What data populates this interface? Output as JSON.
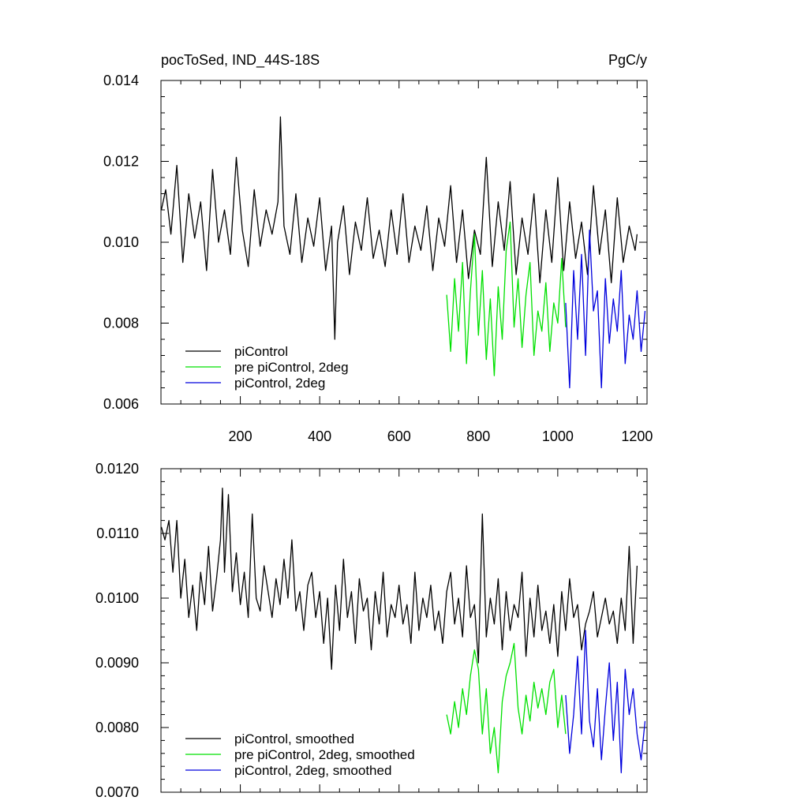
{
  "chart_data": [
    {
      "type": "line",
      "title_left": "pocToSed, IND_44S-18S",
      "title_right": "PgC/y",
      "xlim": [
        0,
        1225
      ],
      "ylim": [
        0.006,
        0.014
      ],
      "xticks": [
        {
          "value": 200,
          "label": "200"
        },
        {
          "value": 400,
          "label": "400"
        },
        {
          "value": 600,
          "label": "600"
        },
        {
          "value": 800,
          "label": "800"
        },
        {
          "value": 1000,
          "label": "1000"
        },
        {
          "value": 1200,
          "label": "1200"
        }
      ],
      "yticks": [
        {
          "value": 0.006,
          "label": "0.006"
        },
        {
          "value": 0.008,
          "label": "0.008"
        },
        {
          "value": 0.01,
          "label": "0.010"
        },
        {
          "value": 0.012,
          "label": "0.012"
        },
        {
          "value": 0.014,
          "label": "0.014"
        }
      ],
      "legend_position": "bottom-left",
      "series": [
        {
          "name": "piControl",
          "color": "#000000",
          "x": [
            1,
            12,
            25,
            40,
            55,
            70,
            85,
            100,
            115,
            130,
            145,
            160,
            175,
            190,
            205,
            220,
            235,
            250,
            265,
            280,
            295,
            301,
            310,
            325,
            340,
            355,
            370,
            385,
            400,
            415,
            430,
            438,
            445,
            460,
            475,
            490,
            505,
            520,
            535,
            550,
            565,
            580,
            595,
            610,
            625,
            640,
            655,
            670,
            685,
            700,
            715,
            730,
            745,
            760,
            775,
            790,
            805,
            820,
            835,
            850,
            865,
            880,
            895,
            910,
            925,
            940,
            955,
            970,
            985,
            1000,
            1015,
            1030,
            1045,
            1060,
            1075,
            1090,
            1105,
            1120,
            1135,
            1150,
            1165,
            1180,
            1195,
            1200
          ],
          "y": [
            0.0108,
            0.0113,
            0.0102,
            0.0119,
            0.0095,
            0.0112,
            0.0101,
            0.011,
            0.0093,
            0.0118,
            0.01,
            0.0108,
            0.0097,
            0.0121,
            0.0103,
            0.0094,
            0.0113,
            0.0099,
            0.0108,
            0.0102,
            0.011,
            0.0131,
            0.0104,
            0.0097,
            0.0112,
            0.0095,
            0.0106,
            0.0099,
            0.0111,
            0.0093,
            0.0104,
            0.0076,
            0.01,
            0.0109,
            0.0092,
            0.0105,
            0.0098,
            0.0111,
            0.0096,
            0.0103,
            0.0094,
            0.0108,
            0.0097,
            0.0112,
            0.0095,
            0.0104,
            0.0098,
            0.0109,
            0.0093,
            0.0106,
            0.0099,
            0.0114,
            0.0095,
            0.0108,
            0.0091,
            0.0103,
            0.0097,
            0.0121,
            0.0094,
            0.011,
            0.0098,
            0.0115,
            0.0092,
            0.0106,
            0.0097,
            0.0112,
            0.009,
            0.0108,
            0.0095,
            0.0116,
            0.0093,
            0.011,
            0.0096,
            0.0105,
            0.0092,
            0.0114,
            0.0097,
            0.0108,
            0.009,
            0.0111,
            0.0095,
            0.0104,
            0.0098,
            0.0102
          ]
        },
        {
          "name": "pre piControl, 2deg",
          "color": "#00e000",
          "x": [
            720,
            730,
            740,
            750,
            760,
            770,
            780,
            790,
            800,
            810,
            820,
            830,
            840,
            850,
            860,
            870,
            880,
            890,
            900,
            910,
            920,
            930,
            940,
            950,
            960,
            970,
            980,
            990,
            1000,
            1010,
            1020
          ],
          "y": [
            0.0087,
            0.0073,
            0.0091,
            0.0078,
            0.0095,
            0.007,
            0.0088,
            0.0102,
            0.0077,
            0.0093,
            0.0071,
            0.0086,
            0.0067,
            0.0089,
            0.0076,
            0.0098,
            0.0105,
            0.0079,
            0.0091,
            0.0074,
            0.0087,
            0.0095,
            0.0072,
            0.0083,
            0.0078,
            0.009,
            0.0073,
            0.0085,
            0.008,
            0.0096,
            0.0079
          ]
        },
        {
          "name": "piControl, 2deg",
          "color": "#0000dd",
          "x": [
            1020,
            1030,
            1040,
            1050,
            1060,
            1070,
            1080,
            1090,
            1100,
            1110,
            1120,
            1130,
            1140,
            1150,
            1160,
            1170,
            1180,
            1190,
            1200,
            1210,
            1220
          ],
          "y": [
            0.0085,
            0.0064,
            0.0093,
            0.0076,
            0.0097,
            0.0072,
            0.0103,
            0.0083,
            0.0088,
            0.0064,
            0.0091,
            0.0075,
            0.0086,
            0.0078,
            0.0093,
            0.007,
            0.0082,
            0.0076,
            0.0088,
            0.0073,
            0.0083
          ]
        }
      ]
    },
    {
      "type": "line",
      "xlim": [
        0,
        1225
      ],
      "ylim": [
        0.007,
        0.012
      ],
      "xticks": [
        {
          "value": 200,
          "label": ""
        },
        {
          "value": 400,
          "label": ""
        },
        {
          "value": 600,
          "label": ""
        },
        {
          "value": 800,
          "label": ""
        },
        {
          "value": 1000,
          "label": ""
        },
        {
          "value": 1200,
          "label": ""
        }
      ],
      "yticks": [
        {
          "value": 0.007,
          "label": "0.0070"
        },
        {
          "value": 0.008,
          "label": "0.0080"
        },
        {
          "value": 0.009,
          "label": "0.0090"
        },
        {
          "value": 0.01,
          "label": "0.0100"
        },
        {
          "value": 0.011,
          "label": "0.0110"
        },
        {
          "value": 0.012,
          "label": "0.0120"
        }
      ],
      "legend_position": "bottom-left",
      "series": [
        {
          "name": "piControl, smoothed",
          "color": "#000000",
          "x": [
            1,
            10,
            20,
            30,
            40,
            50,
            60,
            70,
            80,
            90,
            100,
            110,
            120,
            130,
            140,
            150,
            155,
            160,
            170,
            180,
            190,
            200,
            210,
            220,
            230,
            240,
            250,
            260,
            270,
            280,
            290,
            300,
            310,
            320,
            330,
            340,
            350,
            360,
            370,
            380,
            390,
            400,
            410,
            420,
            430,
            440,
            450,
            460,
            470,
            480,
            490,
            500,
            510,
            520,
            530,
            540,
            550,
            560,
            570,
            580,
            590,
            600,
            610,
            620,
            630,
            640,
            650,
            660,
            670,
            680,
            690,
            700,
            710,
            720,
            730,
            740,
            750,
            760,
            770,
            780,
            790,
            800,
            810,
            820,
            830,
            840,
            850,
            860,
            870,
            880,
            890,
            900,
            910,
            920,
            930,
            940,
            950,
            960,
            970,
            980,
            990,
            1000,
            1010,
            1020,
            1030,
            1040,
            1050,
            1060,
            1070,
            1080,
            1090,
            1100,
            1110,
            1120,
            1130,
            1140,
            1150,
            1160,
            1170,
            1180,
            1190,
            1200
          ],
          "y": [
            0.0111,
            0.0109,
            0.0112,
            0.0104,
            0.0112,
            0.01,
            0.0106,
            0.0097,
            0.0102,
            0.0095,
            0.0104,
            0.0099,
            0.0108,
            0.0098,
            0.0103,
            0.0109,
            0.0117,
            0.0104,
            0.0116,
            0.0101,
            0.0107,
            0.0099,
            0.0104,
            0.0097,
            0.0113,
            0.01,
            0.0098,
            0.0105,
            0.0101,
            0.0097,
            0.0103,
            0.0099,
            0.0106,
            0.01,
            0.0109,
            0.0098,
            0.0101,
            0.0095,
            0.0102,
            0.0104,
            0.0097,
            0.0101,
            0.0093,
            0.01,
            0.0089,
            0.0102,
            0.0095,
            0.0106,
            0.0097,
            0.0101,
            0.0093,
            0.0103,
            0.0098,
            0.01,
            0.0092,
            0.0101,
            0.0096,
            0.0104,
            0.0094,
            0.0099,
            0.0097,
            0.0102,
            0.0096,
            0.0099,
            0.0093,
            0.0104,
            0.0095,
            0.01,
            0.0097,
            0.0102,
            0.0095,
            0.0098,
            0.0093,
            0.0101,
            0.0104,
            0.0096,
            0.01,
            0.0094,
            0.0105,
            0.0097,
            0.0099,
            0.009,
            0.0113,
            0.0094,
            0.01,
            0.0096,
            0.0103,
            0.0092,
            0.0101,
            0.0095,
            0.0099,
            0.0097,
            0.0104,
            0.0091,
            0.01,
            0.0094,
            0.0102,
            0.0095,
            0.0098,
            0.0093,
            0.0099,
            0.0091,
            0.0101,
            0.0095,
            0.0103,
            0.0097,
            0.0099,
            0.0092,
            0.0096,
            0.0098,
            0.0101,
            0.0094,
            0.0097,
            0.01,
            0.0096,
            0.0098,
            0.0093,
            0.01,
            0.0095,
            0.0108,
            0.0093,
            0.0105
          ]
        },
        {
          "name": "pre piControl, 2deg, smoothed",
          "color": "#00e000",
          "x": [
            720,
            730,
            740,
            750,
            760,
            770,
            780,
            790,
            800,
            810,
            820,
            830,
            840,
            850,
            860,
            870,
            880,
            890,
            900,
            910,
            920,
            930,
            940,
            950,
            960,
            970,
            980,
            990,
            1000,
            1010,
            1020
          ],
          "y": [
            0.0082,
            0.0079,
            0.0084,
            0.008,
            0.0086,
            0.0082,
            0.0088,
            0.0092,
            0.0089,
            0.0079,
            0.0086,
            0.0076,
            0.008,
            0.0073,
            0.0084,
            0.0088,
            0.009,
            0.0093,
            0.0083,
            0.0079,
            0.0085,
            0.0081,
            0.0087,
            0.0083,
            0.0086,
            0.0082,
            0.0087,
            0.0089,
            0.008,
            0.0085,
            0.0079
          ]
        },
        {
          "name": "piControl, 2deg, smoothed",
          "color": "#0000dd",
          "x": [
            1020,
            1030,
            1040,
            1050,
            1060,
            1070,
            1080,
            1090,
            1100,
            1110,
            1120,
            1130,
            1140,
            1150,
            1160,
            1170,
            1180,
            1190,
            1200,
            1210,
            1220
          ],
          "y": [
            0.0085,
            0.0076,
            0.0082,
            0.0091,
            0.0079,
            0.0095,
            0.0081,
            0.0077,
            0.0086,
            0.0075,
            0.0083,
            0.009,
            0.0078,
            0.0087,
            0.0073,
            0.0089,
            0.0082,
            0.0086,
            0.0079,
            0.0075,
            0.0081
          ]
        }
      ]
    }
  ]
}
